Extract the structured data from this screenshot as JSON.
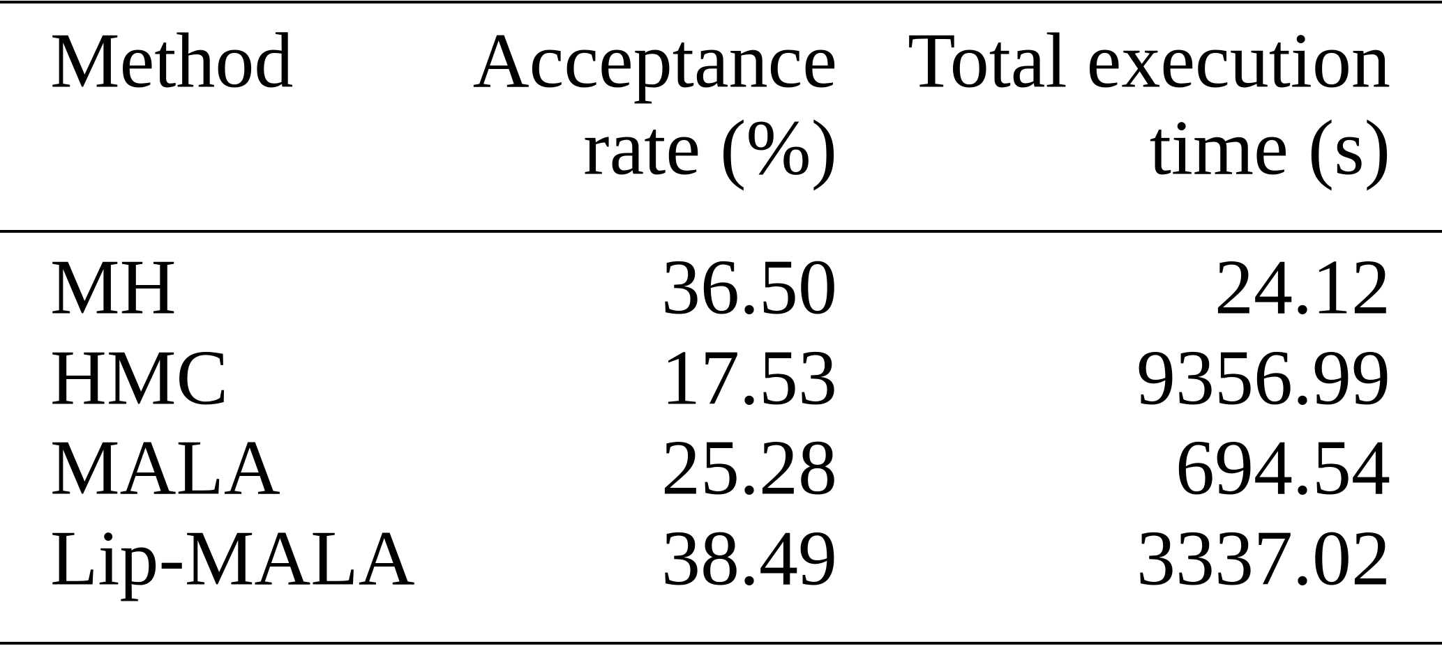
{
  "table": {
    "header": [
      [
        "Method"
      ],
      [
        "Acceptance",
        "rate (%)"
      ],
      [
        "Total execution",
        "time (s)"
      ]
    ],
    "rows": [
      [
        "MH",
        "36.50",
        "24.12"
      ],
      [
        "HMC",
        "17.53",
        "9356.99"
      ],
      [
        "MALA",
        "25.28",
        "694.54"
      ],
      [
        "Lip-MALA",
        "38.49",
        "3337.02"
      ]
    ]
  }
}
